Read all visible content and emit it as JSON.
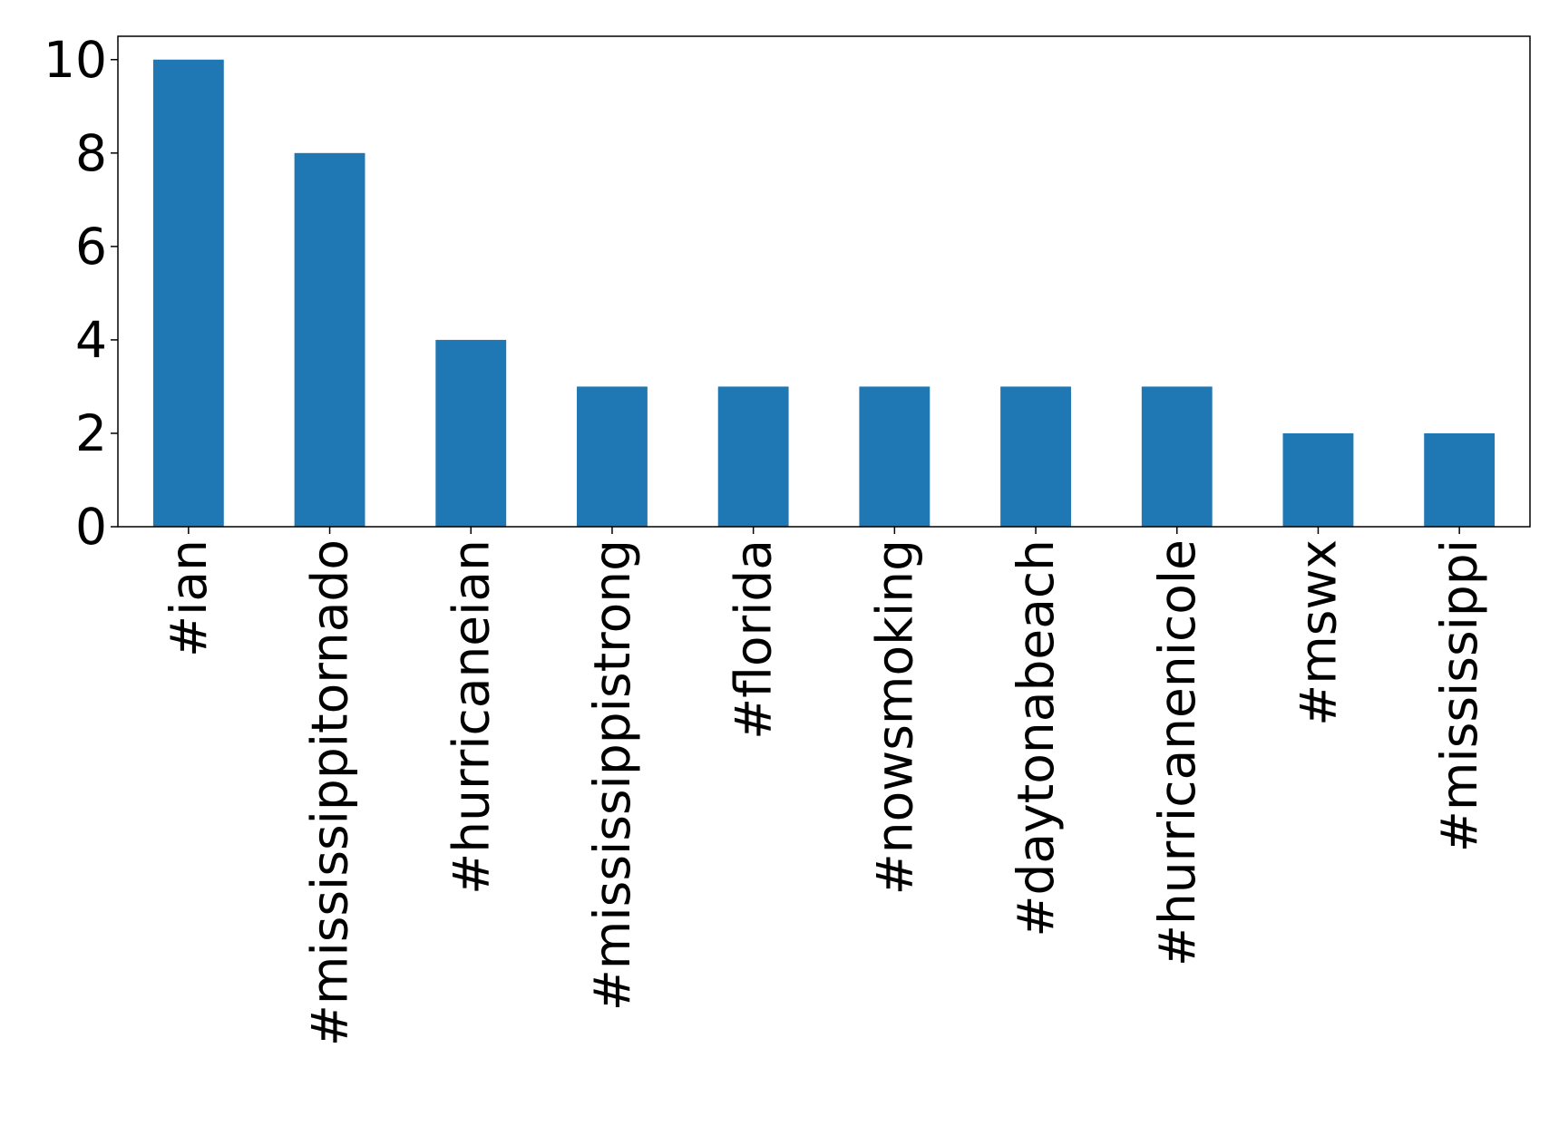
{
  "chart_data": {
    "type": "bar",
    "categories": [
      "#ian",
      "#mississippitornado",
      "#hurricaneian",
      "#mississippistrong",
      "#florida",
      "#nowsmoking",
      "#daytonabeach",
      "#hurricanenicole",
      "#mswx",
      "#mississippi"
    ],
    "values": [
      10,
      8,
      4,
      3,
      3,
      3,
      3,
      3,
      2,
      2
    ],
    "color": "#1f77b4",
    "ylim": [
      0,
      10.5
    ],
    "yticks": [
      0,
      2,
      4,
      6,
      8,
      10
    ],
    "grid": false
  }
}
